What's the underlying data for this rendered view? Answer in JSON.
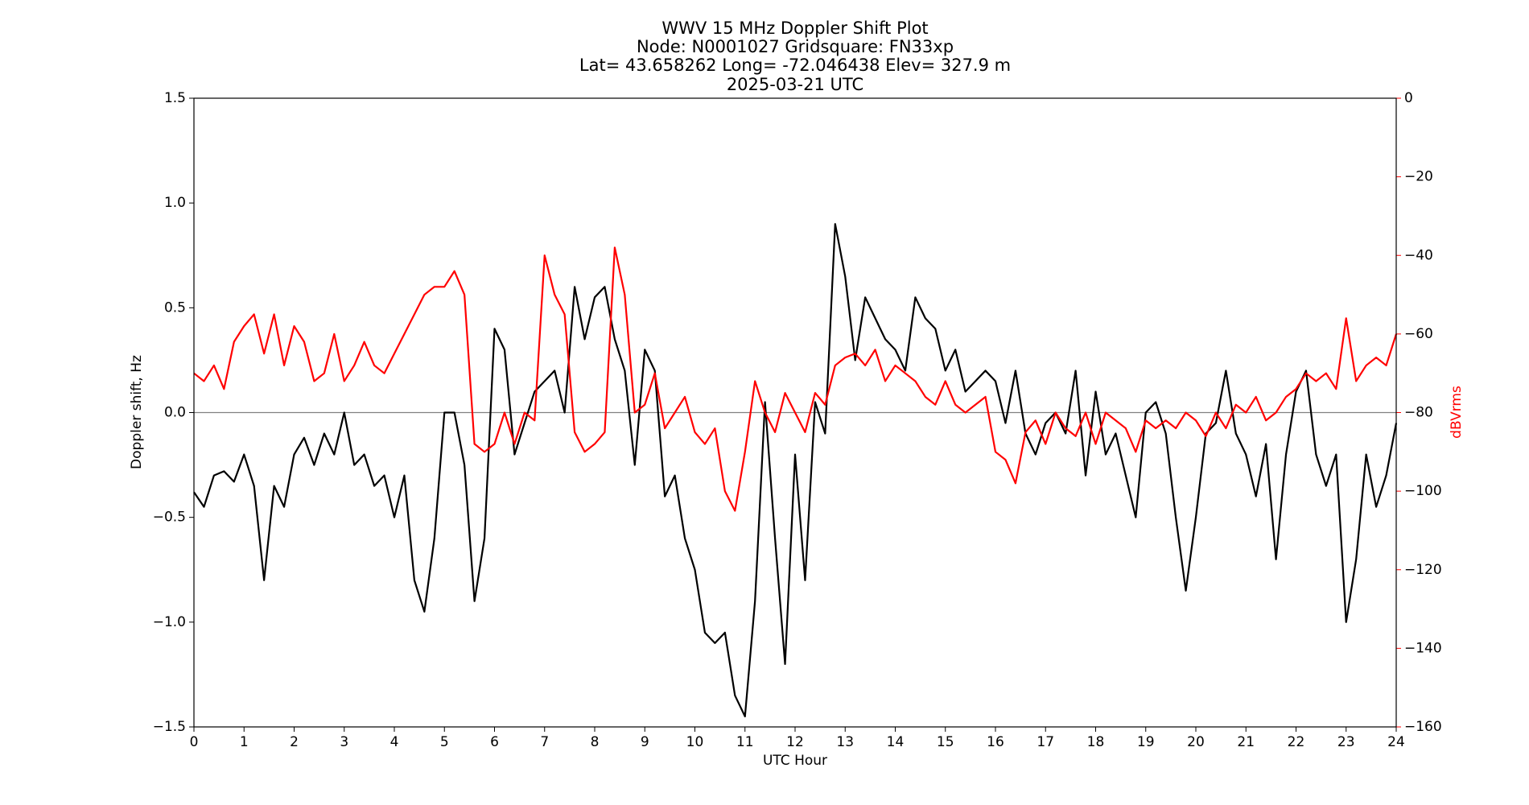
{
  "chart_data": {
    "type": "line",
    "title_lines": [
      "WWV 15 MHz Doppler Shift Plot",
      "Node:  N0001027     Gridsquare:  FN33xp",
      "Lat=   43.658262    Long= -72.046438    Elev= 327.9 m",
      "2025-03-21  UTC"
    ],
    "xlabel": "UTC Hour",
    "ylabel": "Doppler shift, Hz",
    "y2label": "dBVrms",
    "xlim": [
      0,
      24
    ],
    "xticks": [
      0,
      1,
      2,
      3,
      4,
      5,
      6,
      7,
      8,
      9,
      10,
      11,
      12,
      13,
      14,
      15,
      16,
      17,
      18,
      19,
      20,
      21,
      22,
      23,
      24
    ],
    "ylim": [
      -1.5,
      1.5
    ],
    "yticks": [
      {
        "value": -1.5,
        "label": "−1.5"
      },
      {
        "value": -1.0,
        "label": "−1.0"
      },
      {
        "value": -0.5,
        "label": "−0.5"
      },
      {
        "value": 0,
        "label": "0.0"
      },
      0.5,
      {
        "value": 1.0,
        "label": "1.0"
      },
      1.5
    ],
    "y2lim": [
      -160,
      0
    ],
    "y2ticks": [
      {
        "value": -160,
        "label": "−160"
      },
      {
        "value": -140,
        "label": "−140"
      },
      {
        "value": -120,
        "label": "−120"
      },
      {
        "value": -100,
        "label": "−100"
      },
      {
        "value": -80,
        "label": "−80"
      },
      {
        "value": -60,
        "label": "−60"
      },
      {
        "value": -40,
        "label": "−40"
      },
      {
        "value": -20,
        "label": "−20"
      },
      0
    ],
    "y2color": "#ff0000",
    "reference_line": 0,
    "x": [
      0,
      0.2,
      0.4,
      0.6,
      0.8,
      1,
      1.2,
      1.4,
      1.6,
      1.8,
      2,
      2.2,
      2.4,
      2.6,
      2.8,
      3,
      3.2,
      3.4,
      3.6,
      3.8,
      4,
      4.2,
      4.4,
      4.6,
      4.8,
      5,
      5.2,
      5.4,
      5.6,
      5.8,
      6,
      6.2,
      6.4,
      6.6,
      6.8,
      7,
      7.2,
      7.4,
      7.6,
      7.8,
      8,
      8.2,
      8.4,
      8.6,
      8.8,
      9,
      9.2,
      9.4,
      9.6,
      9.8,
      10,
      10.2,
      10.4,
      10.6,
      10.8,
      11,
      11.2,
      11.4,
      11.6,
      11.8,
      12,
      12.2,
      12.4,
      12.6,
      12.8,
      13,
      13.2,
      13.4,
      13.6,
      13.8,
      14,
      14.2,
      14.4,
      14.6,
      14.8,
      15,
      15.2,
      15.4,
      15.6,
      15.8,
      16,
      16.2,
      16.4,
      16.6,
      16.8,
      17,
      17.2,
      17.4,
      17.6,
      17.8,
      18,
      18.2,
      18.4,
      18.6,
      18.8,
      19,
      19.2,
      19.4,
      19.6,
      19.8,
      20,
      20.2,
      20.4,
      20.6,
      20.8,
      21,
      21.2,
      21.4,
      21.6,
      21.8,
      22,
      22.2,
      22.4,
      22.6,
      22.8,
      23,
      23.2,
      23.4,
      23.6,
      23.8,
      24
    ],
    "series": [
      {
        "color": "#000000",
        "values": [
          -0.38,
          -0.45,
          -0.3,
          -0.28,
          -0.33,
          -0.2,
          -0.35,
          -0.8,
          -0.35,
          -0.45,
          -0.2,
          -0.12,
          -0.25,
          -0.1,
          -0.2,
          0.0,
          -0.25,
          -0.2,
          -0.35,
          -0.3,
          -0.5,
          -0.3,
          -0.8,
          -0.95,
          -0.6,
          0.0,
          0.0,
          -0.25,
          -0.9,
          -0.6,
          0.4,
          0.3,
          -0.2,
          -0.05,
          0.1,
          0.15,
          0.2,
          0.0,
          0.6,
          0.35,
          0.55,
          0.6,
          0.35,
          0.2,
          -0.25,
          0.3,
          0.2,
          -0.4,
          -0.3,
          -0.6,
          -0.75,
          -1.05,
          -1.1,
          -1.05,
          -1.35,
          -1.45,
          -0.9,
          0.05,
          -0.6,
          -1.2,
          -0.2,
          -0.8,
          0.05,
          -0.1,
          0.9,
          0.65,
          0.25,
          0.55,
          0.45,
          0.35,
          0.3,
          0.2,
          0.55,
          0.45,
          0.4,
          0.2,
          0.3,
          0.1,
          0.15,
          0.2,
          0.15,
          -0.05,
          0.2,
          -0.1,
          -0.2,
          -0.05,
          0.0,
          -0.1,
          0.2,
          -0.3,
          0.1,
          -0.2,
          -0.1,
          -0.3,
          -0.5,
          0.0,
          0.05,
          -0.1,
          -0.5,
          -0.85,
          -0.5,
          -0.1,
          -0.05,
          0.2,
          -0.1,
          -0.2,
          -0.4,
          -0.15,
          -0.7,
          -0.2,
          0.1,
          0.2,
          -0.2,
          -0.35,
          -0.2,
          -1.0,
          -0.7,
          -0.2,
          -0.45,
          -0.3,
          -0.05
        ]
      },
      {
        "color": "#ff0000",
        "axis": "y2",
        "values": [
          -70,
          -72,
          -68,
          -74,
          -62,
          -58,
          -55,
          -65,
          -55,
          -68,
          -58,
          -62,
          -72,
          -70,
          -60,
          -72,
          -68,
          -62,
          -68,
          -70,
          -65,
          -60,
          -55,
          -50,
          -48,
          -48,
          -44,
          -50,
          -88,
          -90,
          -88,
          -80,
          -88,
          -80,
          -82,
          -40,
          -50,
          -55,
          -85,
          -90,
          -88,
          -85,
          -38,
          -50,
          -80,
          -78,
          -70,
          -84,
          -80,
          -76,
          -85,
          -88,
          -84,
          -100,
          -105,
          -90,
          -72,
          -80,
          -85,
          -75,
          -80,
          -85,
          -75,
          -78,
          -68,
          -66,
          -65,
          -68,
          -64,
          -72,
          -68,
          -70,
          -72,
          -76,
          -78,
          -72,
          -78,
          -80,
          -78,
          -76,
          -90,
          -92,
          -98,
          -85,
          -82,
          -88,
          -80,
          -84,
          -86,
          -80,
          -88,
          -80,
          -82,
          -84,
          -90,
          -82,
          -84,
          -82,
          -84,
          -80,
          -82,
          -86,
          -80,
          -84,
          -78,
          -80,
          -76,
          -82,
          -80,
          -76,
          -74,
          -70,
          -72,
          -70,
          -74,
          -56,
          -72,
          -68,
          -66,
          -68,
          -60
        ]
      }
    ]
  }
}
